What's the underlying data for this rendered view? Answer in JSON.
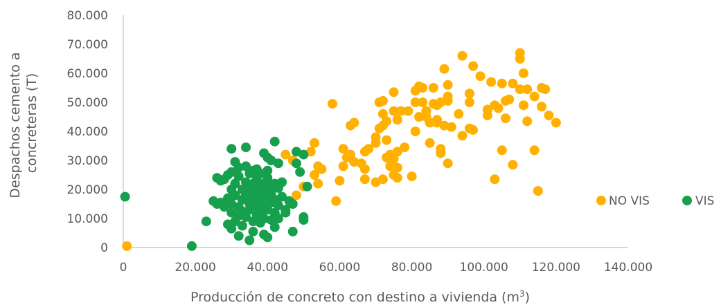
{
  "chart_data": {
    "type": "scatter",
    "title": "",
    "xlabel": "Producción de concreto con destino a vivienda (m",
    "xlabel_sup": "3",
    "xlabel_close": ")",
    "ylabel_lines": [
      "Despachos cemento  a",
      "concreteras (T)"
    ],
    "xlim": [
      0,
      140000
    ],
    "ylim": [
      0,
      80000
    ],
    "x_ticks": [
      0,
      20000,
      40000,
      60000,
      80000,
      100000,
      120000,
      140000
    ],
    "x_tick_labels": [
      "0",
      "20.000",
      "40.000",
      "60.000",
      "80.000",
      "100.000",
      "120.000",
      "140.000"
    ],
    "y_ticks": [
      0,
      10000,
      20000,
      30000,
      40000,
      50000,
      60000,
      70000,
      80000
    ],
    "y_tick_labels": [
      "0",
      "10.000",
      "20.000",
      "30.000",
      "40.000",
      "50.000",
      "60.000",
      "70.000",
      "80.000"
    ],
    "grid": false,
    "legend_position": "right",
    "series": [
      {
        "name": "NO VIS",
        "color": "#FFB000",
        "points": [
          [
            1000,
            500
          ],
          [
            45000,
            32000
          ],
          [
            47000,
            30000
          ],
          [
            48000,
            18000
          ],
          [
            50000,
            21000
          ],
          [
            52000,
            33000
          ],
          [
            53000,
            36000
          ],
          [
            54000,
            28000
          ],
          [
            53000,
            25000
          ],
          [
            55000,
            27000
          ],
          [
            54000,
            22000
          ],
          [
            58000,
            49500
          ],
          [
            59000,
            16000
          ],
          [
            60000,
            23000
          ],
          [
            61000,
            28000
          ],
          [
            62000,
            31000
          ],
          [
            61000,
            34000
          ],
          [
            63000,
            42000
          ],
          [
            64000,
            43000
          ],
          [
            63000,
            32000
          ],
          [
            64000,
            29500
          ],
          [
            66000,
            29000
          ],
          [
            67000,
            27000
          ],
          [
            67000,
            33000
          ],
          [
            68000,
            34000
          ],
          [
            67000,
            23500
          ],
          [
            70000,
            22500
          ],
          [
            70000,
            36000
          ],
          [
            70000,
            38000
          ],
          [
            71000,
            41000
          ],
          [
            72000,
            42000
          ],
          [
            73000,
            43500
          ],
          [
            72000,
            46000
          ],
          [
            72000,
            50500
          ],
          [
            71000,
            50000
          ],
          [
            72000,
            23500
          ],
          [
            73000,
            37000
          ],
          [
            73000,
            31000
          ],
          [
            74000,
            28000
          ],
          [
            74000,
            32000
          ],
          [
            75000,
            30500
          ],
          [
            75000,
            25000
          ],
          [
            76000,
            24000
          ],
          [
            75000,
            53500
          ],
          [
            75000,
            47000
          ],
          [
            76000,
            44000
          ],
          [
            77000,
            47000
          ],
          [
            76000,
            33000
          ],
          [
            76000,
            27500
          ],
          [
            79000,
            47000
          ],
          [
            78000,
            34500
          ],
          [
            80000,
            24500
          ],
          [
            81000,
            40000
          ],
          [
            82000,
            45000
          ],
          [
            81000,
            50000
          ],
          [
            81000,
            54000
          ],
          [
            82000,
            55500
          ],
          [
            83000,
            55000
          ],
          [
            83000,
            50000
          ],
          [
            84000,
            47000
          ],
          [
            84000,
            45000
          ],
          [
            85000,
            36000
          ],
          [
            85000,
            43000
          ],
          [
            86000,
            49500
          ],
          [
            86000,
            55000
          ],
          [
            87000,
            44000
          ],
          [
            87000,
            43000
          ],
          [
            87000,
            49000
          ],
          [
            88000,
            50000
          ],
          [
            88000,
            34000
          ],
          [
            88000,
            32500
          ],
          [
            89000,
            42000
          ],
          [
            89000,
            61500
          ],
          [
            90000,
            56000
          ],
          [
            90000,
            50500
          ],
          [
            90000,
            52000
          ],
          [
            90000,
            29000
          ],
          [
            91000,
            41500
          ],
          [
            93000,
            46000
          ],
          [
            94000,
            66000
          ],
          [
            94000,
            38500
          ],
          [
            96000,
            50000
          ],
          [
            96000,
            41000
          ],
          [
            96000,
            53000
          ],
          [
            97000,
            62500
          ],
          [
            97000,
            40500
          ],
          [
            99000,
            59000
          ],
          [
            101000,
            45500
          ],
          [
            101000,
            47500
          ],
          [
            102000,
            57000
          ],
          [
            103000,
            49000
          ],
          [
            103000,
            23500
          ],
          [
            104000,
            48000
          ],
          [
            105000,
            33500
          ],
          [
            105000,
            56500
          ],
          [
            106000,
            50500
          ],
          [
            106000,
            44500
          ],
          [
            107000,
            51000
          ],
          [
            108000,
            56500
          ],
          [
            108000,
            28500
          ],
          [
            110000,
            54500
          ],
          [
            110000,
            65000
          ],
          [
            110000,
            67000
          ],
          [
            111000,
            49000
          ],
          [
            111000,
            60000
          ],
          [
            112000,
            54500
          ],
          [
            112000,
            43500
          ],
          [
            114000,
            33500
          ],
          [
            114000,
            52000
          ],
          [
            115000,
            19500
          ],
          [
            116000,
            55000
          ],
          [
            116000,
            48500
          ],
          [
            117000,
            54500
          ],
          [
            118000,
            45500
          ],
          [
            120000,
            43000
          ]
        ]
      },
      {
        "name": "VIS",
        "color": "#16A04D",
        "points": [
          [
            500,
            17500
          ],
          [
            19000,
            500
          ],
          [
            23000,
            9000
          ],
          [
            25000,
            16000
          ],
          [
            26000,
            24000
          ],
          [
            26000,
            15000
          ],
          [
            27000,
            23000
          ],
          [
            27000,
            15500
          ],
          [
            28000,
            14000
          ],
          [
            28000,
            23500
          ],
          [
            29000,
            8000
          ],
          [
            29000,
            17000
          ],
          [
            29000,
            25000
          ],
          [
            30000,
            26000
          ],
          [
            30000,
            20000
          ],
          [
            30000,
            15000
          ],
          [
            30000,
            12000
          ],
          [
            30000,
            6500
          ],
          [
            30000,
            34000
          ],
          [
            31000,
            29500
          ],
          [
            31000,
            9000
          ],
          [
            31000,
            22000
          ],
          [
            31000,
            18000
          ],
          [
            32000,
            27500
          ],
          [
            32000,
            14000
          ],
          [
            32000,
            11000
          ],
          [
            32000,
            4000
          ],
          [
            32000,
            24500
          ],
          [
            33000,
            20000
          ],
          [
            33000,
            16500
          ],
          [
            33000,
            12500
          ],
          [
            33000,
            7500
          ],
          [
            34000,
            28000
          ],
          [
            34000,
            34500
          ],
          [
            34000,
            18000
          ],
          [
            34000,
            10500
          ],
          [
            34000,
            22500
          ],
          [
            35000,
            25500
          ],
          [
            35000,
            15000
          ],
          [
            35000,
            2500
          ],
          [
            35000,
            13000
          ],
          [
            35000,
            19500
          ],
          [
            36000,
            22000
          ],
          [
            36000,
            26500
          ],
          [
            36000,
            20000
          ],
          [
            36000,
            17000
          ],
          [
            36000,
            9000
          ],
          [
            36000,
            5500
          ],
          [
            37000,
            23500
          ],
          [
            37000,
            18500
          ],
          [
            37000,
            14000
          ],
          [
            37000,
            11000
          ],
          [
            37000,
            27000
          ],
          [
            38000,
            20500
          ],
          [
            38000,
            16000
          ],
          [
            38000,
            25500
          ],
          [
            38000,
            12500
          ],
          [
            38000,
            8500
          ],
          [
            39000,
            22000
          ],
          [
            39000,
            19000
          ],
          [
            39000,
            15000
          ],
          [
            39000,
            32500
          ],
          [
            39000,
            10000
          ],
          [
            39000,
            4500
          ],
          [
            40000,
            24000
          ],
          [
            40000,
            20000
          ],
          [
            40000,
            17000
          ],
          [
            40000,
            26500
          ],
          [
            40000,
            13000
          ],
          [
            40000,
            31000
          ],
          [
            40000,
            3500
          ],
          [
            41000,
            21500
          ],
          [
            41000,
            18500
          ],
          [
            41000,
            15500
          ],
          [
            41000,
            9500
          ],
          [
            41000,
            30000
          ],
          [
            42000,
            22000
          ],
          [
            42000,
            16500
          ],
          [
            42000,
            12000
          ],
          [
            42000,
            36500
          ],
          [
            42000,
            7000
          ],
          [
            43000,
            20500
          ],
          [
            43000,
            14500
          ],
          [
            43000,
            29000
          ],
          [
            43000,
            10000
          ],
          [
            44000,
            17500
          ],
          [
            44000,
            22500
          ],
          [
            45000,
            13000
          ],
          [
            45000,
            12000
          ],
          [
            46000,
            16000
          ],
          [
            47000,
            15000
          ],
          [
            47000,
            5500
          ],
          [
            48000,
            29000
          ],
          [
            48000,
            33000
          ],
          [
            49000,
            26000
          ],
          [
            50000,
            32000
          ],
          [
            50000,
            10500
          ],
          [
            50000,
            9500
          ],
          [
            51000,
            21000
          ]
        ]
      }
    ]
  }
}
